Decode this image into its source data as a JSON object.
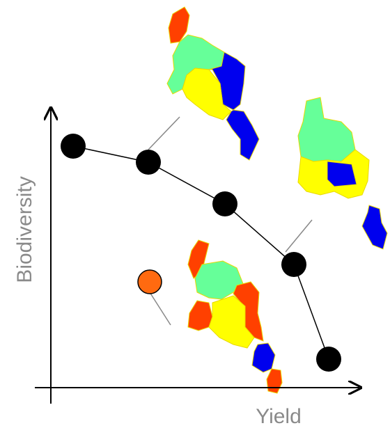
{
  "axes": {
    "x_label": "Yield",
    "y_label": "Biodiversity"
  }
}
